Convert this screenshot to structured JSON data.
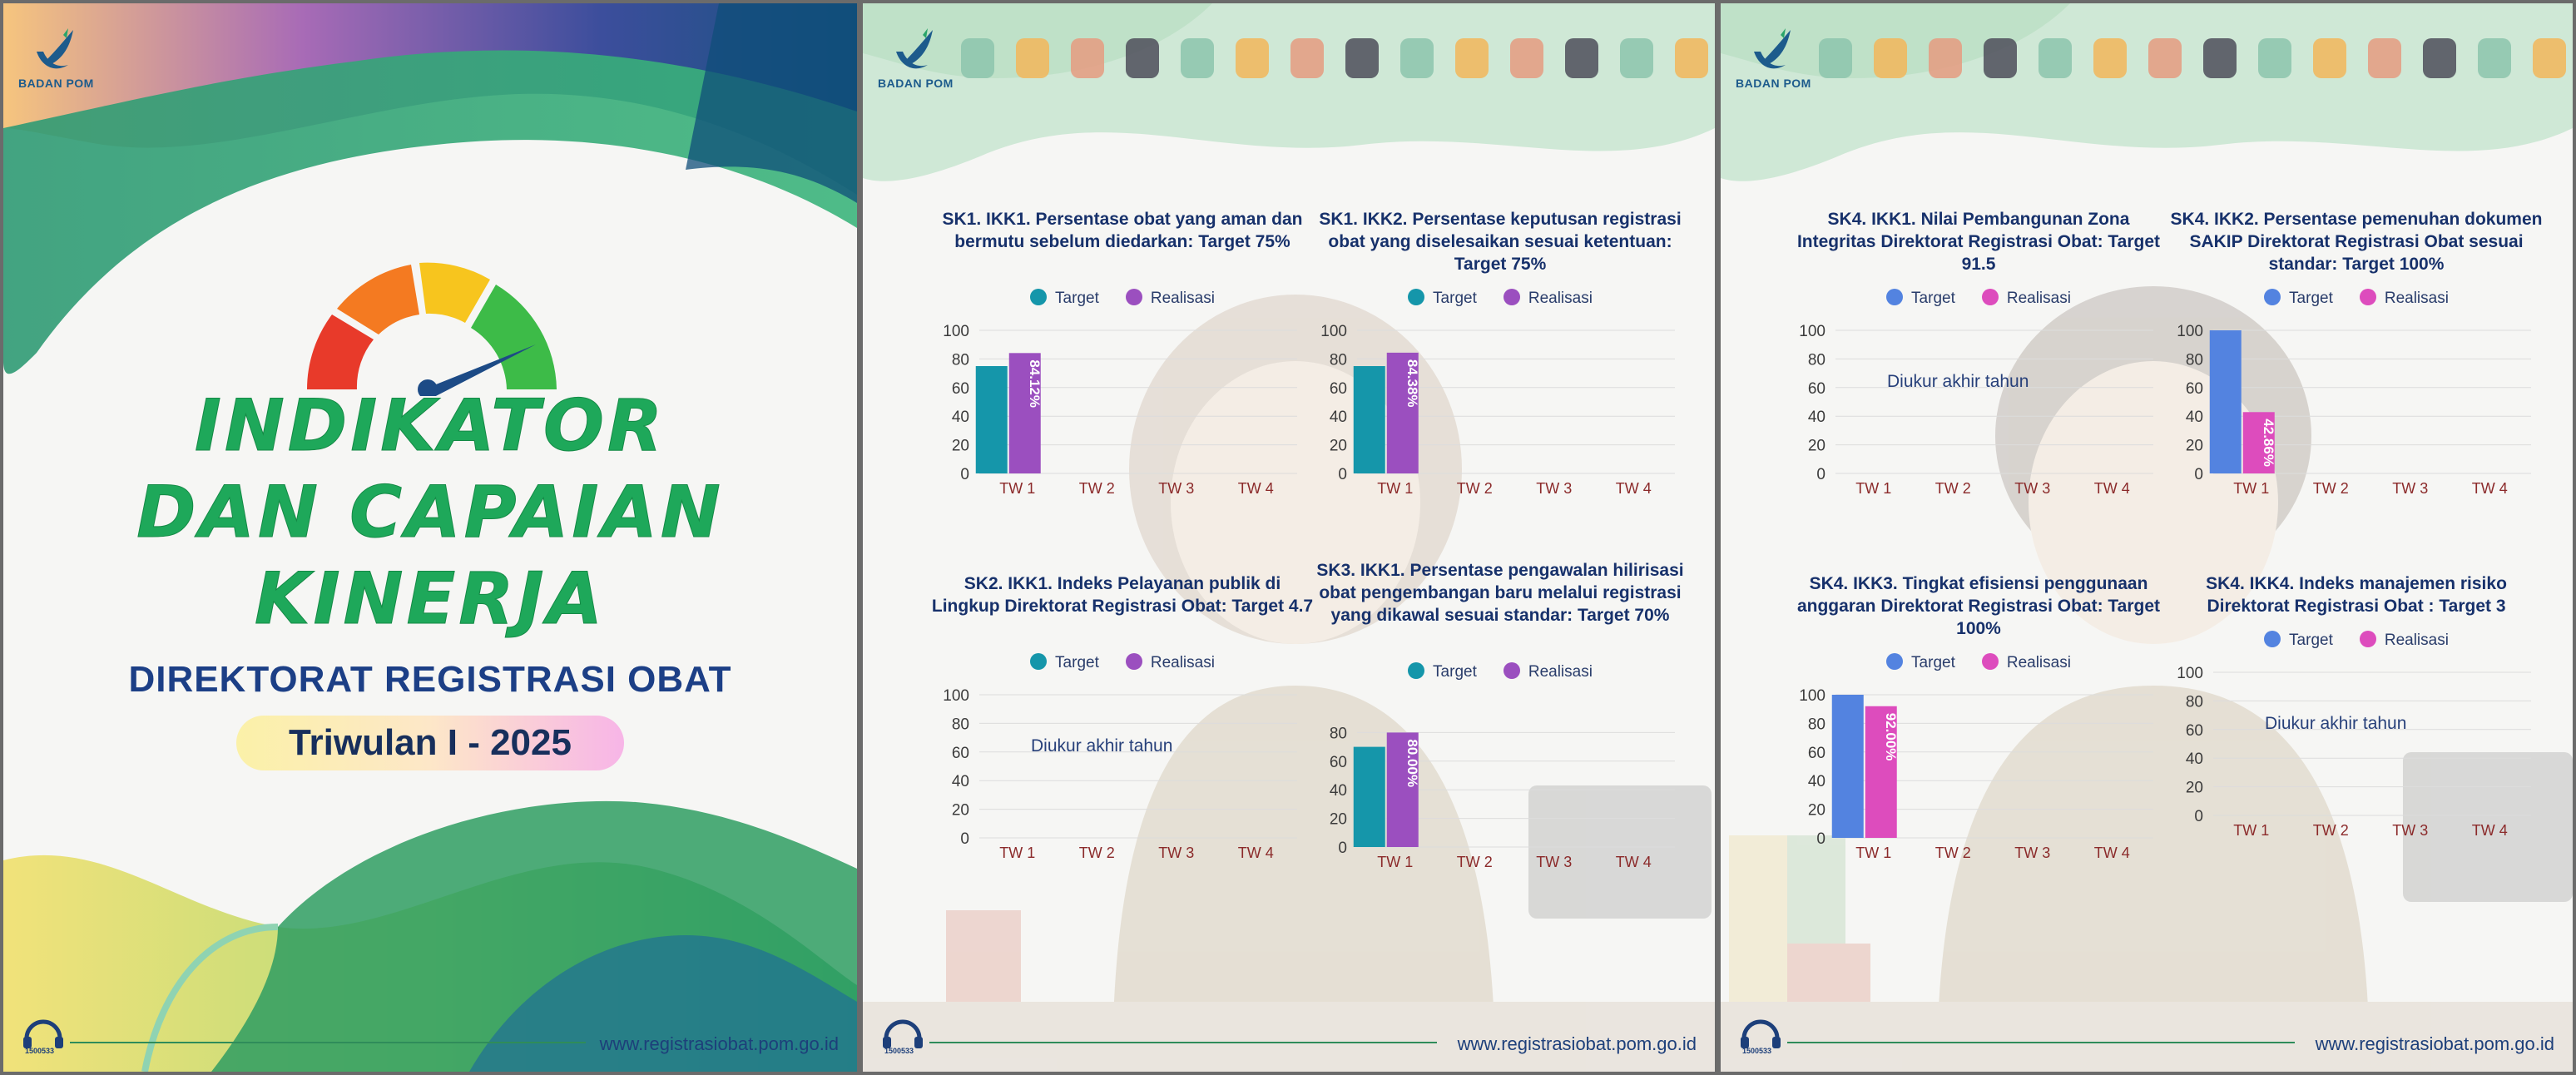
{
  "brand": {
    "logo_text": "BADAN POM",
    "hotline": "1500533",
    "website": "www.registrasiobat.pom.go.id"
  },
  "cover": {
    "title_lines": [
      "INDIKATOR",
      "DAN CAPAIAN",
      "KINERJA"
    ],
    "subtitle": "DIREKTORAT REGISTRASI OBAT",
    "period": "Triwulan I - 2025"
  },
  "legend": {
    "target": "Target",
    "realisasi": "Realisasi"
  },
  "colors": {
    "green_title": "#1ea85a",
    "navy": "#1c3f86",
    "p2_target": "#1596aa",
    "p2_realisasi": "#9b4fbf",
    "p3_target": "#5383e0",
    "p3_realisasi": "#dd4cbd",
    "tick_label": "#8b2a2a"
  },
  "chart_data": [
    {
      "type": "bar",
      "title": "SK1. IKK1. Persentase obat yang aman dan bermutu sebelum diedarkan: Target 75%",
      "categories": [
        "TW 1",
        "TW 2",
        "TW 3",
        "TW 4"
      ],
      "ylim": [
        0,
        100
      ],
      "yticks": [
        0,
        20,
        40,
        60,
        80,
        100
      ],
      "series": [
        {
          "name": "Target",
          "values": [
            75,
            null,
            null,
            null
          ]
        },
        {
          "name": "Realisasi",
          "values": [
            84.12,
            null,
            null,
            null
          ],
          "labels": [
            "84.12%",
            null,
            null,
            null
          ]
        }
      ],
      "note": ""
    },
    {
      "type": "bar",
      "title": "SK1. IKK2. Persentase keputusan registrasi obat yang diselesaikan sesuai ketentuan: Target 75%",
      "categories": [
        "TW 1",
        "TW 2",
        "TW 3",
        "TW 4"
      ],
      "ylim": [
        0,
        100
      ],
      "yticks": [
        0,
        20,
        40,
        60,
        80,
        100
      ],
      "series": [
        {
          "name": "Target",
          "values": [
            75,
            null,
            null,
            null
          ]
        },
        {
          "name": "Realisasi",
          "values": [
            84.38,
            null,
            null,
            null
          ],
          "labels": [
            "84.38%",
            null,
            null,
            null
          ]
        }
      ],
      "note": ""
    },
    {
      "type": "bar",
      "title": "SK2. IKK1. Indeks Pelayanan publik di Lingkup Direktorat Registrasi Obat: Target 4.7",
      "categories": [
        "TW 1",
        "TW 2",
        "TW 3",
        "TW 4"
      ],
      "ylim": [
        0,
        100
      ],
      "yticks": [
        0,
        20,
        40,
        60,
        80,
        100
      ],
      "series": [
        {
          "name": "Target",
          "values": [
            null,
            null,
            null,
            null
          ]
        },
        {
          "name": "Realisasi",
          "values": [
            null,
            null,
            null,
            null
          ]
        }
      ],
      "note": "Diukur akhir tahun"
    },
    {
      "type": "bar",
      "title": "SK3. IKK1. Persentase pengawalan hilirisasi obat pengembangan baru melalui registrasi yang dikawal sesuai standar: Target 70%",
      "categories": [
        "TW 1",
        "TW 2",
        "TW 3",
        "TW 4"
      ],
      "ylim": [
        0,
        100
      ],
      "yticks": [
        0,
        20,
        40,
        60,
        80
      ],
      "series": [
        {
          "name": "Target",
          "values": [
            70,
            null,
            null,
            null
          ]
        },
        {
          "name": "Realisasi",
          "values": [
            80.0,
            null,
            null,
            null
          ],
          "labels": [
            "80.00%",
            null,
            null,
            null
          ]
        }
      ],
      "note": ""
    },
    {
      "type": "bar",
      "title": "SK4. IKK1. Nilai Pembangunan Zona Integritas Direktorat Registrasi Obat: Target 91.5",
      "categories": [
        "TW 1",
        "TW 2",
        "TW 3",
        "TW 4"
      ],
      "ylim": [
        0,
        100
      ],
      "yticks": [
        0,
        20,
        40,
        60,
        80,
        100
      ],
      "series": [
        {
          "name": "Target",
          "values": [
            null,
            null,
            null,
            null
          ]
        },
        {
          "name": "Realisasi",
          "values": [
            null,
            null,
            null,
            null
          ]
        }
      ],
      "note": "Diukur akhir tahun"
    },
    {
      "type": "bar",
      "title": "SK4. IKK2. Persentase pemenuhan dokumen SAKIP Direktorat Registrasi Obat sesuai standar: Target 100%",
      "categories": [
        "TW 1",
        "TW 2",
        "TW 3",
        "TW 4"
      ],
      "ylim": [
        0,
        100
      ],
      "yticks": [
        0,
        20,
        40,
        60,
        80,
        100
      ],
      "series": [
        {
          "name": "Target",
          "values": [
            100,
            null,
            null,
            null
          ]
        },
        {
          "name": "Realisasi",
          "values": [
            42.86,
            null,
            null,
            null
          ],
          "labels": [
            "42.86%",
            null,
            null,
            null
          ]
        }
      ],
      "note": ""
    },
    {
      "type": "bar",
      "title": "SK4. IKK3. Tingkat efisiensi penggunaan anggaran Direktorat Registrasi Obat: Target 100%",
      "categories": [
        "TW 1",
        "TW 2",
        "TW 3",
        "TW 4"
      ],
      "ylim": [
        0,
        100
      ],
      "yticks": [
        0,
        20,
        40,
        60,
        80,
        100
      ],
      "series": [
        {
          "name": "Target",
          "values": [
            100,
            null,
            null,
            null
          ]
        },
        {
          "name": "Realisasi",
          "values": [
            92.0,
            null,
            null,
            null
          ],
          "labels": [
            "92.00%",
            null,
            null,
            null
          ]
        }
      ],
      "note": ""
    },
    {
      "type": "bar",
      "title": "SK4. IKK4. Indeks manajemen risiko Direktorat Registrasi Obat : Target 3",
      "categories": [
        "TW 1",
        "TW 2",
        "TW 3",
        "TW 4"
      ],
      "ylim": [
        0,
        100
      ],
      "yticks": [
        0,
        20,
        40,
        60,
        80,
        100
      ],
      "series": [
        {
          "name": "Target",
          "values": [
            null,
            null,
            null,
            null
          ]
        },
        {
          "name": "Realisasi",
          "values": [
            null,
            null,
            null,
            null
          ]
        }
      ],
      "note": "Diukur akhir tahun"
    }
  ]
}
